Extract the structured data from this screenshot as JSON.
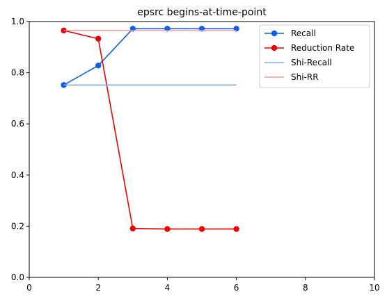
{
  "chart_data": {
    "type": "line",
    "title": "epsrc begins-at-time-point",
    "xlabel": "",
    "ylabel": "",
    "xlim": [
      0,
      10
    ],
    "ylim": [
      0,
      1.0
    ],
    "x_ticks": [
      0,
      2,
      4,
      6,
      8,
      10
    ],
    "y_ticks": [
      0.0,
      0.2,
      0.4,
      0.6,
      0.8,
      1.0
    ],
    "x_tick_labels": [
      "0",
      "2",
      "4",
      "6",
      "8",
      "10"
    ],
    "y_tick_labels": [
      "0.0",
      "0.2",
      "0.4",
      "0.6",
      "0.8",
      "1.0"
    ],
    "grid": false,
    "legend_position": "top-right",
    "series": [
      {
        "name": "Recall",
        "color": "#0a5fec",
        "marker": "circle",
        "x": [
          1,
          2,
          3,
          4,
          5,
          6
        ],
        "values": [
          0.752,
          0.828,
          0.972,
          0.972,
          0.972,
          0.972
        ]
      },
      {
        "name": "Reduction Rate",
        "color": "#ee0000",
        "marker": "circle",
        "x": [
          1,
          2,
          3,
          4,
          5,
          6
        ],
        "values": [
          0.965,
          0.933,
          0.191,
          0.189,
          0.189,
          0.189
        ]
      },
      {
        "name": "Shi-Recall",
        "color": "#7faaf6",
        "marker": "none",
        "x": [
          1,
          6
        ],
        "values": [
          0.752,
          0.752
        ]
      },
      {
        "name": "Shi-RR",
        "color": "#f89a9a",
        "marker": "none",
        "x": [
          1,
          6
        ],
        "values": [
          0.965,
          0.965
        ]
      }
    ]
  }
}
